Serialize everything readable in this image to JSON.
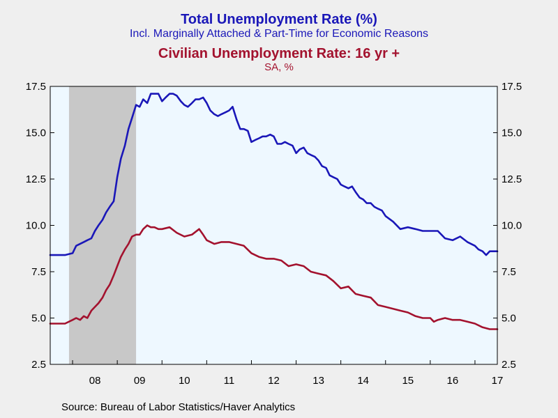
{
  "chart_data": {
    "type": "line",
    "title": "Total Unemployment Rate (%)",
    "subtitle": "Incl. Marginally Attached & Part-Time for Economic Reasons",
    "title2": "Civilian Unemployment Rate: 16 yr +",
    "subtitle2": "SA, %",
    "source": "Source:  Bureau of Labor Statistics/Haver Analytics",
    "ylim": [
      2.5,
      17.5
    ],
    "yticks": [
      "17.5",
      "15.0",
      "12.5",
      "10.0",
      "7.5",
      "5.0",
      "2.5"
    ],
    "xlim": [
      2007.5,
      2017.5
    ],
    "xticks": [
      "08",
      "09",
      "10",
      "11",
      "12",
      "13",
      "14",
      "15",
      "16",
      "17"
    ],
    "recession": [
      2007.92,
      2009.42
    ],
    "grid": false,
    "series": [
      {
        "color": "#1a17b8",
        "x": [
          2007.5,
          2007.67,
          2007.83,
          2008.0,
          2008.08,
          2008.25,
          2008.33,
          2008.42,
          2008.5,
          2008.58,
          2008.67,
          2008.75,
          2008.83,
          2008.92,
          2009.0,
          2009.08,
          2009.17,
          2009.25,
          2009.33,
          2009.42,
          2009.5,
          2009.58,
          2009.67,
          2009.75,
          2009.83,
          2009.92,
          2010.0,
          2010.08,
          2010.17,
          2010.25,
          2010.33,
          2010.42,
          2010.5,
          2010.58,
          2010.67,
          2010.75,
          2010.83,
          2010.92,
          2011.0,
          2011.08,
          2011.17,
          2011.25,
          2011.33,
          2011.42,
          2011.5,
          2011.58,
          2011.67,
          2011.75,
          2011.83,
          2011.92,
          2012.0,
          2012.08,
          2012.17,
          2012.25,
          2012.33,
          2012.42,
          2012.5,
          2012.58,
          2012.67,
          2012.75,
          2012.83,
          2012.92,
          2013.0,
          2013.08,
          2013.17,
          2013.25,
          2013.33,
          2013.42,
          2013.5,
          2013.58,
          2013.67,
          2013.75,
          2013.83,
          2013.92,
          2014.0,
          2014.08,
          2014.17,
          2014.25,
          2014.33,
          2014.42,
          2014.5,
          2014.58,
          2014.67,
          2014.75,
          2014.83,
          2014.92,
          2015.0,
          2015.17,
          2015.33,
          2015.5,
          2015.67,
          2015.83,
          2016.0,
          2016.17,
          2016.33,
          2016.5,
          2016.67,
          2016.83,
          2017.0,
          2017.08,
          2017.17,
          2017.25,
          2017.33,
          2017.5
        ],
        "values": [
          8.4,
          8.4,
          8.4,
          8.5,
          8.9,
          9.1,
          9.2,
          9.3,
          9.7,
          10.0,
          10.3,
          10.7,
          11.0,
          11.3,
          12.6,
          13.6,
          14.3,
          15.2,
          15.8,
          16.5,
          16.4,
          16.8,
          16.6,
          17.1,
          17.1,
          17.1,
          16.7,
          16.9,
          17.1,
          17.1,
          17.0,
          16.7,
          16.5,
          16.4,
          16.6,
          16.8,
          16.8,
          16.9,
          16.6,
          16.2,
          16.0,
          15.9,
          16.0,
          16.1,
          16.2,
          16.4,
          15.7,
          15.2,
          15.2,
          15.1,
          14.5,
          14.6,
          14.7,
          14.8,
          14.8,
          14.9,
          14.8,
          14.4,
          14.4,
          14.5,
          14.4,
          14.3,
          13.9,
          14.1,
          14.2,
          13.9,
          13.8,
          13.7,
          13.5,
          13.2,
          13.1,
          12.7,
          12.6,
          12.5,
          12.2,
          12.1,
          12.0,
          12.1,
          11.8,
          11.5,
          11.4,
          11.2,
          11.2,
          11.0,
          10.9,
          10.8,
          10.5,
          10.2,
          9.8,
          9.9,
          9.8,
          9.7,
          9.7,
          9.7,
          9.3,
          9.2,
          9.4,
          9.1,
          8.9,
          8.7,
          8.6,
          8.4,
          8.6,
          8.6
        ]
      },
      {
        "color": "#a3122e",
        "x": [
          2007.5,
          2007.67,
          2007.83,
          2008.0,
          2008.08,
          2008.17,
          2008.25,
          2008.33,
          2008.42,
          2008.5,
          2008.58,
          2008.67,
          2008.75,
          2008.83,
          2008.92,
          2009.0,
          2009.08,
          2009.17,
          2009.25,
          2009.33,
          2009.42,
          2009.5,
          2009.58,
          2009.67,
          2009.75,
          2009.83,
          2009.92,
          2010.0,
          2010.17,
          2010.33,
          2010.5,
          2010.67,
          2010.83,
          2010.92,
          2011.0,
          2011.17,
          2011.33,
          2011.5,
          2011.67,
          2011.83,
          2012.0,
          2012.17,
          2012.33,
          2012.5,
          2012.67,
          2012.83,
          2013.0,
          2013.17,
          2013.33,
          2013.5,
          2013.67,
          2013.83,
          2014.0,
          2014.17,
          2014.33,
          2014.5,
          2014.67,
          2014.83,
          2015.0,
          2015.17,
          2015.33,
          2015.5,
          2015.67,
          2015.83,
          2016.0,
          2016.08,
          2016.17,
          2016.33,
          2016.5,
          2016.67,
          2016.83,
          2017.0,
          2017.17,
          2017.33,
          2017.5
        ],
        "values": [
          4.7,
          4.7,
          4.7,
          4.9,
          5.0,
          4.9,
          5.1,
          5.0,
          5.4,
          5.6,
          5.8,
          6.1,
          6.5,
          6.8,
          7.3,
          7.8,
          8.3,
          8.7,
          9.0,
          9.4,
          9.5,
          9.5,
          9.8,
          10.0,
          9.9,
          9.9,
          9.8,
          9.8,
          9.9,
          9.6,
          9.4,
          9.5,
          9.8,
          9.5,
          9.2,
          9.0,
          9.1,
          9.1,
          9.0,
          8.9,
          8.5,
          8.3,
          8.2,
          8.2,
          8.1,
          7.8,
          7.9,
          7.8,
          7.5,
          7.4,
          7.3,
          7.0,
          6.6,
          6.7,
          6.3,
          6.2,
          6.1,
          5.7,
          5.6,
          5.5,
          5.4,
          5.3,
          5.1,
          5.0,
          5.0,
          4.8,
          4.9,
          5.0,
          4.9,
          4.9,
          4.8,
          4.7,
          4.5,
          4.4,
          4.4
        ]
      }
    ]
  }
}
